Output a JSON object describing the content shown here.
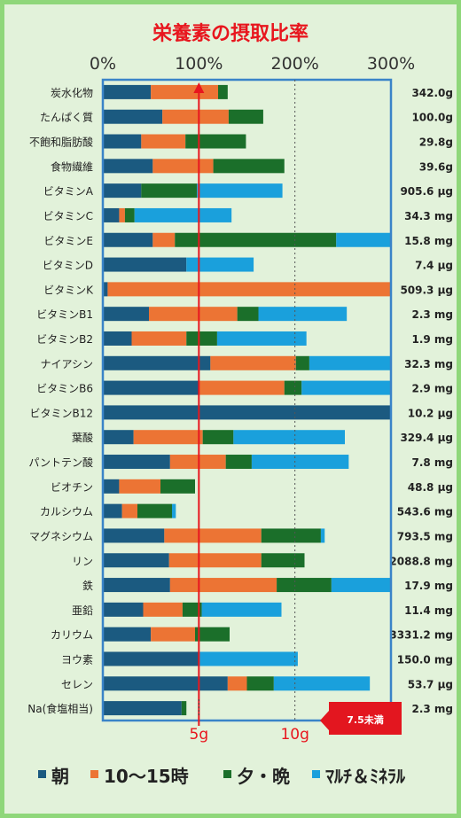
{
  "colors": {
    "morning": "#1b5a80",
    "midday": "#ec7434",
    "evening": "#1b6f2a",
    "supplement": "#1aa0dc",
    "title": "#e8161e",
    "line100": "#e8161e",
    "frame": "#3a84c8",
    "background": "#e2f2da",
    "border": "#8fd77a",
    "callout": "#e3161f"
  },
  "chart_data": {
    "type": "bar",
    "stacked": true,
    "orientation": "horizontal",
    "title": "栄養素の摂取比率",
    "x_unit": "percent",
    "xlim": [
      0,
      300
    ],
    "x_ticks": [
      "0%",
      "100%",
      "200%",
      "300%"
    ],
    "reference_line_pct": 100,
    "grid_lines_pct": [
      100,
      200
    ],
    "categories": [
      "炭水化物",
      "たんぱく質",
      "不飽和脂肪酸",
      "食物繊維",
      "ビタミンA",
      "ビタミンC",
      "ビタミンE",
      "ビタミンD",
      "ビタミンK",
      "ビタミンB1",
      "ビタミンB2",
      "ナイアシン",
      "ビタミンB6",
      "ビタミンB12",
      "葉酸",
      "パントテン酸",
      "ビオチン",
      "カルシウム",
      "マグネシウム",
      "リン",
      "鉄",
      "亜鉛",
      "カリウム",
      "ヨウ素",
      "セレン",
      "Na(食塩相当)"
    ],
    "amounts": [
      "342.0g",
      "100.0g",
      "29.8g",
      "39.6g",
      "905.6 μg",
      "34.3 mg",
      "15.8 mg",
      "7.4 μg",
      "509.3 μg",
      "2.3 mg",
      "1.9 mg",
      "32.3 mg",
      "2.9 mg",
      "10.2 μg",
      "329.4 μg",
      "7.8 mg",
      "48.8 μg",
      "543.6 mg",
      "793.5 mg",
      "2088.8 mg",
      "17.9 mg",
      "11.4 mg",
      "3331.2 mg",
      "150.0 mg",
      "53.7 μg",
      "2.3 mg"
    ],
    "series": [
      {
        "name": "朝",
        "color_key": "morning",
        "values": [
          50,
          62,
          40,
          52,
          40,
          17,
          52,
          87,
          5,
          48,
          30,
          112,
          100,
          300,
          32,
          70,
          17,
          20,
          64,
          69,
          70,
          42,
          50,
          100,
          130,
          82
        ]
      },
      {
        "name": "10～15時",
        "color_key": "midday",
        "values": [
          70,
          69,
          46,
          63,
          0,
          6,
          23,
          0,
          295,
          92,
          57,
          89,
          89,
          0,
          72,
          58,
          43,
          16,
          101,
          96,
          111,
          41,
          46,
          0,
          20,
          0
        ]
      },
      {
        "name": "夕・晩",
        "color_key": "evening",
        "values": [
          10,
          36,
          63,
          74,
          58,
          10,
          168,
          0,
          0,
          22,
          32,
          14,
          18,
          0,
          32,
          27,
          36,
          36,
          62,
          45,
          57,
          20,
          36,
          0,
          28,
          5
        ]
      },
      {
        "name": "ﾏﾙﾁ＆ﾐﾈﾗﾙ",
        "color_key": "supplement",
        "values": [
          0,
          0,
          0,
          0,
          89,
          101,
          58,
          70,
          0,
          92,
          93,
          85,
          93,
          0,
          116,
          101,
          0,
          4,
          4,
          0,
          62,
          83,
          0,
          103,
          100,
          0
        ]
      }
    ],
    "sodium_markers": [
      "5g",
      "10g"
    ],
    "sodium_note": "7.5未満"
  }
}
